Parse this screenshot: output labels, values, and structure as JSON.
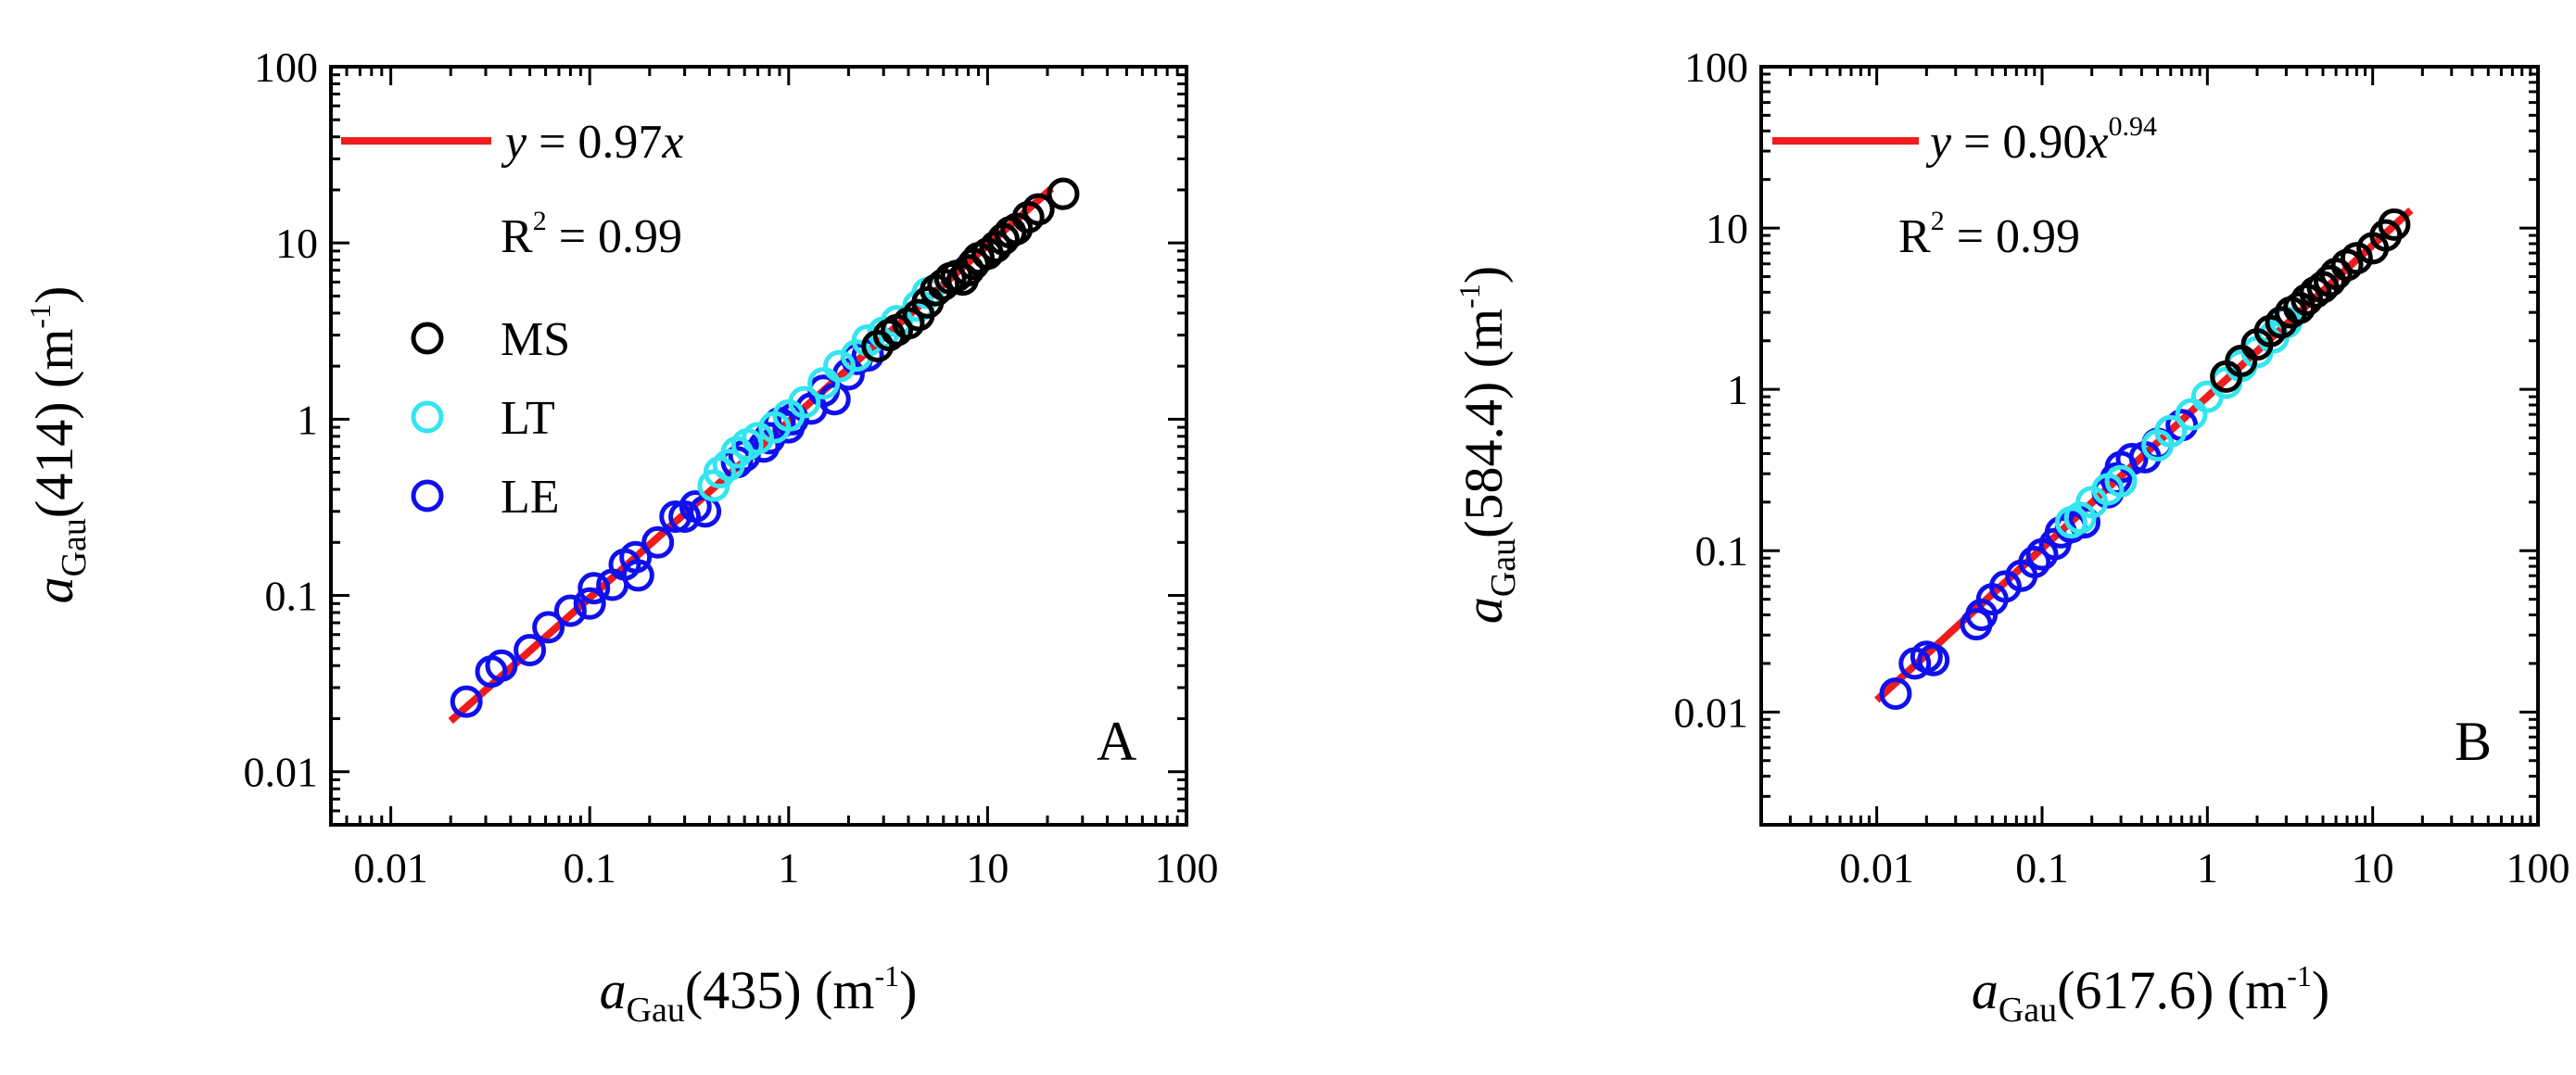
{
  "colors": {
    "MS": "#000000",
    "LT": "#33e5ef",
    "LE": "#1010ee",
    "fit": "#ee1c1c"
  },
  "chart_data": [
    {
      "type": "scatter",
      "panel": "A",
      "xlabel": {
        "a": "a",
        "sub": "Gau",
        "rest": "(435) (m",
        "sup": "-1",
        "close": ")"
      },
      "ylabel": {
        "a": "a",
        "sub": "Gau",
        "rest": "(414) (m",
        "sup": "-1",
        "close": ")"
      },
      "xscale": "log",
      "yscale": "log",
      "xlim": [
        0.005,
        100
      ],
      "ylim": [
        0.005,
        100
      ],
      "xticks": [
        0.01,
        0.1,
        1,
        10,
        100
      ],
      "yticks": [
        0.01,
        0.1,
        1,
        10,
        100
      ],
      "xtick_labels": [
        "0.01",
        "0.1",
        "1",
        "10",
        "100"
      ],
      "ytick_labels": [
        "0.01",
        "0.1",
        "1",
        "10",
        "100"
      ],
      "fit": {
        "label_y": "y",
        "label_eq": " = 0.97",
        "label_x": "x",
        "label_sup": "",
        "r2_label": "R",
        "r2_sup": "2",
        "r2_value": " = 0.99",
        "coef": 0.97,
        "exponent": 1.0,
        "x_range": [
          0.02,
          21
        ]
      },
      "legend": [
        "MS",
        "LT",
        "LE"
      ],
      "series": [
        {
          "name": "LE",
          "points": [
            [
              0.024,
              0.025
            ],
            [
              0.032,
              0.037
            ],
            [
              0.036,
              0.04
            ],
            [
              0.05,
              0.049
            ],
            [
              0.062,
              0.066
            ],
            [
              0.08,
              0.082
            ],
            [
              0.1,
              0.09
            ],
            [
              0.105,
              0.11
            ],
            [
              0.13,
              0.115
            ],
            [
              0.15,
              0.15
            ],
            [
              0.17,
              0.165
            ],
            [
              0.175,
              0.13
            ],
            [
              0.22,
              0.2
            ],
            [
              0.27,
              0.28
            ],
            [
              0.3,
              0.28
            ],
            [
              0.34,
              0.32
            ],
            [
              0.38,
              0.3
            ],
            [
              0.55,
              0.57
            ],
            [
              0.6,
              0.62
            ],
            [
              0.75,
              0.7
            ],
            [
              0.8,
              0.78
            ],
            [
              0.9,
              0.95
            ],
            [
              1.0,
              0.9
            ],
            [
              1.05,
              1.0
            ],
            [
              1.3,
              1.15
            ],
            [
              1.5,
              1.45
            ],
            [
              1.7,
              1.3
            ],
            [
              2.0,
              1.8
            ],
            [
              2.2,
              2.2
            ],
            [
              2.5,
              2.3
            ]
          ]
        },
        {
          "name": "LT",
          "points": [
            [
              0.42,
              0.42
            ],
            [
              0.45,
              0.5
            ],
            [
              0.5,
              0.55
            ],
            [
              0.55,
              0.65
            ],
            [
              0.62,
              0.72
            ],
            [
              0.7,
              0.78
            ],
            [
              0.85,
              0.9
            ],
            [
              1.0,
              1.05
            ],
            [
              1.2,
              1.25
            ],
            [
              1.5,
              1.6
            ],
            [
              1.8,
              2.0
            ],
            [
              2.2,
              2.3
            ],
            [
              2.5,
              2.8
            ],
            [
              3.0,
              3.1
            ],
            [
              3.5,
              3.6
            ],
            [
              4.5,
              4.4
            ],
            [
              5.0,
              5.2
            ]
          ]
        },
        {
          "name": "MS",
          "points": [
            [
              2.8,
              2.6
            ],
            [
              3.2,
              3.0
            ],
            [
              3.5,
              3.2
            ],
            [
              4.0,
              3.5
            ],
            [
              4.5,
              3.9
            ],
            [
              5.0,
              4.6
            ],
            [
              5.5,
              5.4
            ],
            [
              6.0,
              5.8
            ],
            [
              6.5,
              6.3
            ],
            [
              7.0,
              6.5
            ],
            [
              7.5,
              6.2
            ],
            [
              8.0,
              7.0
            ],
            [
              8.5,
              7.6
            ],
            [
              9.0,
              8.2
            ],
            [
              10.0,
              8.7
            ],
            [
              11.0,
              9.5
            ],
            [
              12.0,
              10.5
            ],
            [
              13.0,
              11.5
            ],
            [
              14.0,
              12.0
            ],
            [
              16.0,
              14.0
            ],
            [
              18.0,
              15.5
            ],
            [
              24.0,
              19.0
            ]
          ]
        }
      ]
    },
    {
      "type": "scatter",
      "panel": "B",
      "xlabel": {
        "a": "a",
        "sub": "Gau",
        "rest": "(617.6) (m",
        "sup": "-1",
        "close": ")"
      },
      "ylabel": {
        "a": "a",
        "sub": "Gau",
        "rest": "(584.4) (m",
        "sup": "-1",
        "close": ")"
      },
      "xscale": "log",
      "yscale": "log",
      "xlim": [
        0.002,
        100
      ],
      "ylim": [
        0.002,
        100
      ],
      "xticks": [
        0.01,
        0.1,
        1,
        10,
        100
      ],
      "yticks": [
        0.01,
        0.1,
        1,
        10,
        100
      ],
      "xtick_labels": [
        "0.01",
        "0.1",
        "1",
        "10",
        "100"
      ],
      "ytick_labels": [
        "0.01",
        "0.1",
        "1",
        "10",
        "100"
      ],
      "fit": {
        "label_y": "y",
        "label_eq": " = 0.90",
        "label_x": "x",
        "label_sup": "0.94",
        "r2_label": "R",
        "r2_sup": "2",
        "r2_value": " = 0.99",
        "coef": 0.9,
        "exponent": 0.94,
        "x_range": [
          0.01,
          17
        ]
      },
      "legend": [],
      "series": [
        {
          "name": "LE",
          "points": [
            [
              0.013,
              0.013
            ],
            [
              0.017,
              0.02
            ],
            [
              0.02,
              0.022
            ],
            [
              0.022,
              0.021
            ],
            [
              0.04,
              0.035
            ],
            [
              0.043,
              0.04
            ],
            [
              0.05,
              0.05
            ],
            [
              0.06,
              0.06
            ],
            [
              0.075,
              0.07
            ],
            [
              0.09,
              0.085
            ],
            [
              0.1,
              0.095
            ],
            [
              0.12,
              0.11
            ],
            [
              0.13,
              0.13
            ],
            [
              0.15,
              0.14
            ],
            [
              0.18,
              0.15
            ],
            [
              0.25,
              0.23
            ],
            [
              0.28,
              0.28
            ],
            [
              0.3,
              0.33
            ],
            [
              0.35,
              0.37
            ],
            [
              0.42,
              0.38
            ],
            [
              0.5,
              0.46
            ],
            [
              0.6,
              0.55
            ],
            [
              0.7,
              0.6
            ]
          ]
        },
        {
          "name": "LT",
          "points": [
            [
              0.15,
              0.15
            ],
            [
              0.17,
              0.16
            ],
            [
              0.2,
              0.2
            ],
            [
              0.25,
              0.24
            ],
            [
              0.3,
              0.27
            ],
            [
              0.5,
              0.45
            ],
            [
              0.6,
              0.55
            ],
            [
              0.8,
              0.7
            ],
            [
              1.0,
              0.9
            ],
            [
              1.3,
              1.1
            ],
            [
              1.6,
              1.4
            ],
            [
              2.0,
              1.7
            ],
            [
              2.5,
              2.1
            ],
            [
              3.0,
              2.6
            ]
          ]
        },
        {
          "name": "MS",
          "points": [
            [
              1.3,
              1.2
            ],
            [
              1.6,
              1.5
            ],
            [
              2.0,
              1.9
            ],
            [
              2.4,
              2.3
            ],
            [
              2.8,
              2.6
            ],
            [
              3.2,
              3.0
            ],
            [
              3.6,
              3.2
            ],
            [
              4.0,
              3.6
            ],
            [
              4.5,
              4.0
            ],
            [
              5.0,
              4.3
            ],
            [
              5.5,
              4.7
            ],
            [
              6.0,
              5.2
            ],
            [
              7.0,
              5.9
            ],
            [
              8.0,
              6.5
            ],
            [
              10.0,
              7.5
            ],
            [
              12.0,
              9.0
            ],
            [
              13.5,
              10.5
            ]
          ]
        }
      ]
    }
  ]
}
